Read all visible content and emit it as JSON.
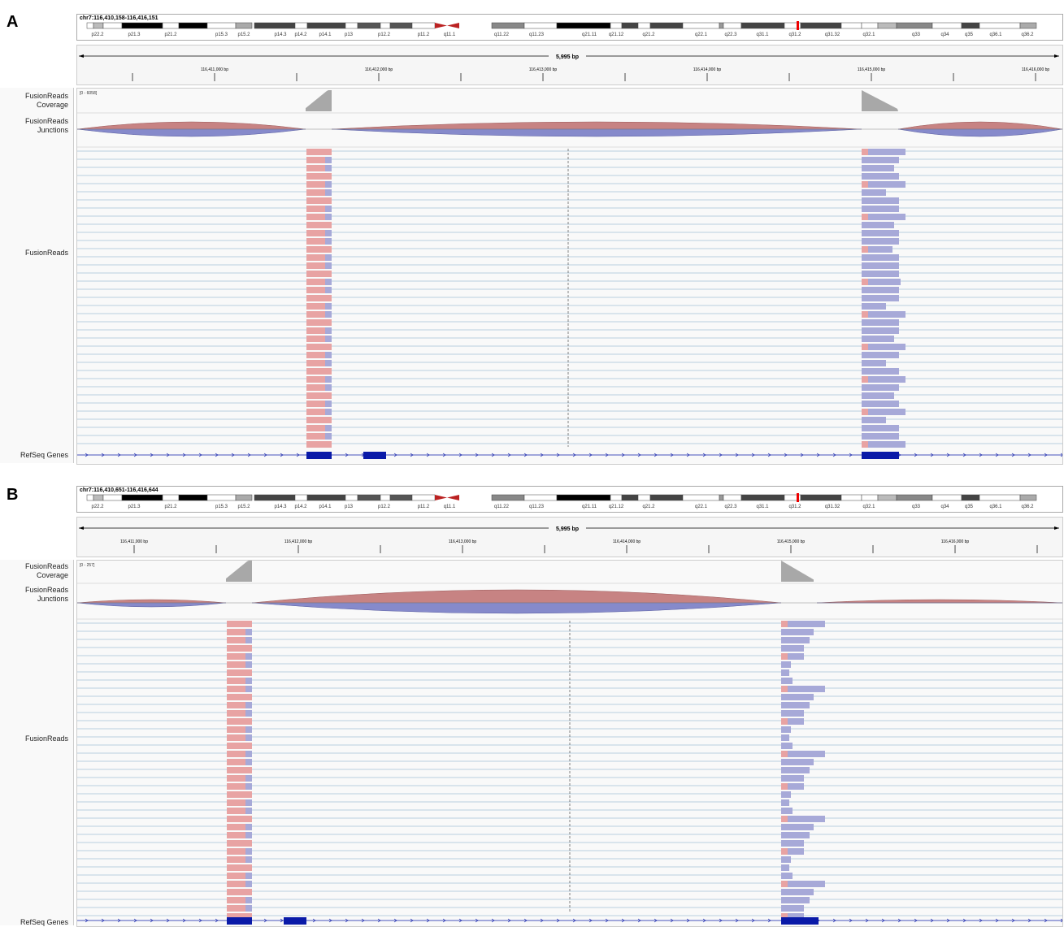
{
  "panels": [
    {
      "letter": "A",
      "locus": "chr7:116,410,158-116,416,151",
      "span": "5,995 bp",
      "ticks": [
        "116,411,000 bp",
        "116,412,000 bp",
        "116,413,000 bp",
        "116,414,000 bp",
        "116,415,000 bp",
        "116,416,000 bp"
      ],
      "coverage_range": "[0 - 6058]",
      "tracks": {
        "coverage": "FusionReads Coverage",
        "junctions": "FusionReads Junctions",
        "reads": "FusionReads",
        "genes": "RefSeq Genes"
      }
    },
    {
      "letter": "B",
      "locus": "chr7:116,410,651-116,416,644",
      "span": "5,995 bp",
      "ticks": [
        "116,411,000 bp",
        "116,412,000 bp",
        "116,413,000 bp",
        "116,414,000 bp",
        "116,415,000 bp",
        "116,416,000 bp"
      ],
      "coverage_range": "[0 - 257]",
      "tracks": {
        "coverage": "FusionReads Coverage",
        "junctions": "FusionReads Junctions",
        "reads": "FusionReads",
        "genes": "RefSeq Genes"
      }
    }
  ],
  "bands": [
    "p22.2",
    "p21.3",
    "p21.2",
    "p15.3",
    "p15.2",
    "p14.3",
    "p14.2",
    "p14.1",
    "p13",
    "p12.2",
    "p11.2",
    "q11.1",
    "q11.22",
    "q11.23",
    "q21.11",
    "q21.12",
    "q21.2",
    "q22.1",
    "q22.3",
    "q31.1",
    "q31.2",
    "q31.32",
    "q32.1",
    "q33",
    "q34",
    "q35",
    "q36.1",
    "q36.2"
  ],
  "colors": {
    "forward_read": "#e8a3a3",
    "reverse_read": "#a7a9d8",
    "junction_forward": "#c47c7c",
    "junction_reverse": "#8084c8",
    "gene": "#0a1aa8",
    "coverage": "#a8a8a8"
  }
}
